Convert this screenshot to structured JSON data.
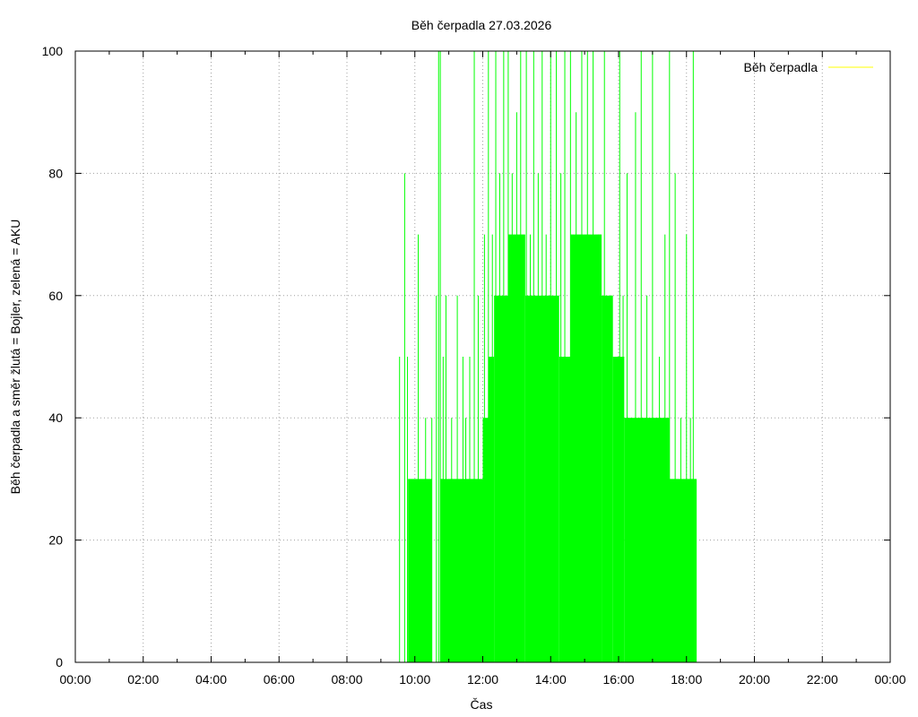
{
  "chart_data": {
    "type": "area",
    "title": "Běh čerpadla 27.03.2026",
    "xlabel": "Čas",
    "ylabel": "Běh čerpadla a směr žlutá = Bojler, zelená = AKU",
    "xlim": [
      "00:00",
      "24:00"
    ],
    "ylim": [
      0,
      100
    ],
    "x_ticks": [
      "00:00",
      "02:00",
      "04:00",
      "06:00",
      "08:00",
      "10:00",
      "12:00",
      "14:00",
      "16:00",
      "18:00",
      "20:00",
      "22:00",
      "00:00"
    ],
    "y_ticks": [
      "0",
      "20",
      "40",
      "60",
      "80",
      "100"
    ],
    "grid": true,
    "legend": {
      "position": "top-right",
      "entries": [
        {
          "label": "Běh čerpadla",
          "color": "#ffff00"
        }
      ]
    },
    "series": [
      {
        "name": "Běh čerpadla",
        "color": "#00ff00",
        "plateaus": [
          {
            "from": "09:48",
            "to": "10:30",
            "value": 30
          },
          {
            "from": "10:45",
            "to": "12:00",
            "value": 30
          },
          {
            "from": "12:00",
            "to": "12:10",
            "value": 40
          },
          {
            "from": "12:10",
            "to": "12:20",
            "value": 50
          },
          {
            "from": "12:20",
            "to": "12:45",
            "value": 60
          },
          {
            "from": "12:45",
            "to": "13:15",
            "value": 70
          },
          {
            "from": "13:15",
            "to": "14:15",
            "value": 60
          },
          {
            "from": "14:15",
            "to": "14:35",
            "value": 50
          },
          {
            "from": "14:35",
            "to": "15:30",
            "value": 70
          },
          {
            "from": "15:30",
            "to": "15:50",
            "value": 60
          },
          {
            "from": "15:50",
            "to": "16:10",
            "value": 50
          },
          {
            "from": "16:10",
            "to": "17:30",
            "value": 40
          },
          {
            "from": "17:30",
            "to": "18:18",
            "value": 30
          }
        ],
        "spikes": [
          {
            "t": "09:33",
            "value": 50
          },
          {
            "t": "09:42",
            "value": 80
          },
          {
            "t": "09:47",
            "value": 50
          },
          {
            "t": "10:06",
            "value": 70
          },
          {
            "t": "10:19",
            "value": 40
          },
          {
            "t": "10:30",
            "value": 40
          },
          {
            "t": "10:38",
            "value": 60
          },
          {
            "t": "10:42",
            "value": 100
          },
          {
            "t": "10:45",
            "value": 100
          },
          {
            "t": "10:50",
            "value": 50
          },
          {
            "t": "10:55",
            "value": 60
          },
          {
            "t": "11:05",
            "value": 40
          },
          {
            "t": "11:15",
            "value": 60
          },
          {
            "t": "11:25",
            "value": 50
          },
          {
            "t": "11:30",
            "value": 40
          },
          {
            "t": "11:37",
            "value": 50
          },
          {
            "t": "11:45",
            "value": 100
          },
          {
            "t": "11:52",
            "value": 60
          },
          {
            "t": "12:03",
            "value": 70
          },
          {
            "t": "12:10",
            "value": 100
          },
          {
            "t": "12:17",
            "value": 70
          },
          {
            "t": "12:23",
            "value": 100
          },
          {
            "t": "12:30",
            "value": 80
          },
          {
            "t": "12:37",
            "value": 100
          },
          {
            "t": "12:45",
            "value": 100
          },
          {
            "t": "12:52",
            "value": 80
          },
          {
            "t": "13:00",
            "value": 90
          },
          {
            "t": "13:07",
            "value": 100
          },
          {
            "t": "13:17",
            "value": 100
          },
          {
            "t": "13:24",
            "value": 70
          },
          {
            "t": "13:30",
            "value": 100
          },
          {
            "t": "13:38",
            "value": 80
          },
          {
            "t": "13:45",
            "value": 100
          },
          {
            "t": "13:52",
            "value": 70
          },
          {
            "t": "14:00",
            "value": 100
          },
          {
            "t": "14:10",
            "value": 100
          },
          {
            "t": "14:18",
            "value": 80
          },
          {
            "t": "14:25",
            "value": 100
          },
          {
            "t": "14:35",
            "value": 100
          },
          {
            "t": "14:45",
            "value": 90
          },
          {
            "t": "14:55",
            "value": 100
          },
          {
            "t": "15:05",
            "value": 100
          },
          {
            "t": "15:15",
            "value": 100
          },
          {
            "t": "15:25",
            "value": 70
          },
          {
            "t": "15:35",
            "value": 100
          },
          {
            "t": "15:48",
            "value": 60
          },
          {
            "t": "16:02",
            "value": 100
          },
          {
            "t": "16:08",
            "value": 60
          },
          {
            "t": "16:15",
            "value": 80
          },
          {
            "t": "16:30",
            "value": 90
          },
          {
            "t": "16:40",
            "value": 100
          },
          {
            "t": "16:50",
            "value": 60
          },
          {
            "t": "17:00",
            "value": 100
          },
          {
            "t": "17:12",
            "value": 50
          },
          {
            "t": "17:22",
            "value": 70
          },
          {
            "t": "17:30",
            "value": 100
          },
          {
            "t": "17:40",
            "value": 80
          },
          {
            "t": "17:50",
            "value": 40
          },
          {
            "t": "18:00",
            "value": 70
          },
          {
            "t": "18:07",
            "value": 40
          },
          {
            "t": "18:12",
            "value": 100
          }
        ]
      }
    ]
  }
}
